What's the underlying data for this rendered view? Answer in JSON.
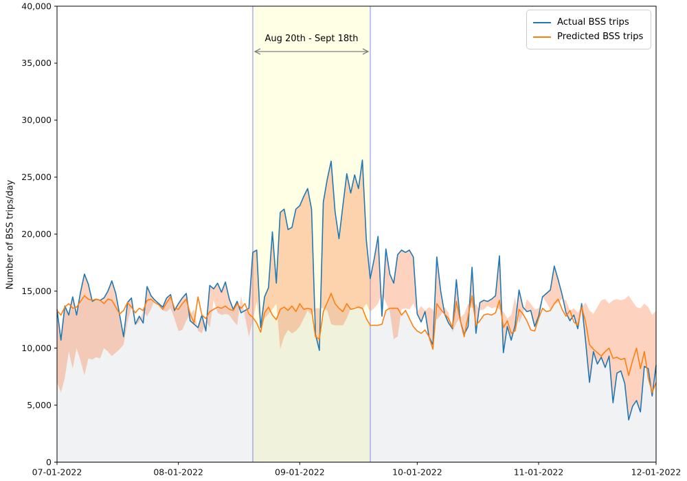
{
  "y_axis": {
    "label": "Number of BSS trips/day",
    "tick_labels": [
      "0",
      "5,000",
      "10,000",
      "15,000",
      "20,000",
      "25,000",
      "30,000",
      "35,000",
      "40,000"
    ],
    "tick_values": [
      0,
      5000,
      10000,
      15000,
      20000,
      25000,
      30000,
      35000,
      40000
    ]
  },
  "x_axis": {
    "tick_labels": [
      "07-01-2022",
      "08-01-2022",
      "09-01-2022",
      "10-01-2022",
      "11-01-2022",
      "12-01-2022"
    ],
    "tick_days": [
      0,
      31,
      62,
      92,
      123,
      153
    ]
  },
  "legend": {
    "items": [
      {
        "label": "Actual BSS trips",
        "color": "#1f77b4"
      },
      {
        "label": "Predicted BSS trips",
        "color": "#ff7f0e"
      }
    ]
  },
  "annotation": {
    "label": "Aug 20th - Sept 18th",
    "band_start_day": 50,
    "band_end_day": 80,
    "arrow_color": "#7f7f7f"
  },
  "chart_data": {
    "type": "line",
    "x_start": "07-01-2022",
    "x_end": "12-01-2022",
    "x_unit": "day",
    "n_points": 154,
    "ylim": [
      0,
      40000
    ],
    "grid": false,
    "legend_position": "upper right",
    "highlight_band": {
      "label": "Aug 20th - Sept 18th",
      "fill": "#ffffcf",
      "fill_opacity": 0.55,
      "edge_color": "#bdc4ee"
    },
    "style": {
      "between_fill": "#fa7a3c",
      "between_opacity": 0.33,
      "under_fill": "#787d8c",
      "under_opacity": 0.1,
      "line_width": 1.6,
      "spine_color": "#000000"
    },
    "series": [
      {
        "name": "Actual BSS trips",
        "color": "#1f77b4",
        "values": [
          13400,
          10700,
          13700,
          12900,
          14500,
          12900,
          14900,
          16500,
          15600,
          14100,
          14300,
          14200,
          14400,
          15000,
          15900,
          14800,
          12900,
          11000,
          14000,
          14400,
          12100,
          12800,
          12200,
          15400,
          14600,
          14200,
          13900,
          13600,
          14400,
          14700,
          13300,
          13900,
          14400,
          14800,
          12400,
          12100,
          11800,
          12900,
          11500,
          15500,
          15200,
          15700,
          14900,
          15800,
          14300,
          13400,
          14100,
          13100,
          13300,
          13500,
          18400,
          18600,
          11800,
          14500,
          15300,
          20200,
          15700,
          21900,
          22200,
          20400,
          20600,
          22200,
          22500,
          23300,
          24000,
          22200,
          11200,
          9800,
          22800,
          24800,
          26400,
          22000,
          19600,
          22500,
          25300,
          23600,
          25200,
          24000,
          26500,
          19500,
          16100,
          17800,
          19800,
          12800,
          18700,
          16500,
          15700,
          18200,
          18600,
          18400,
          18600,
          18000,
          13000,
          12300,
          13200,
          11000,
          10300,
          18000,
          15000,
          13000,
          12200,
          11700,
          16000,
          12400,
          11200,
          11900,
          17100,
          11300,
          14000,
          14200,
          14100,
          14300,
          14600,
          18100,
          9600,
          11900,
          10700,
          12000,
          15100,
          13600,
          13200,
          13300,
          11900,
          12800,
          14500,
          14800,
          15100,
          17200,
          16000,
          14700,
          13100,
          12400,
          12900,
          11700,
          13900,
          10600,
          7000,
          9700,
          8600,
          9200,
          8300,
          9300,
          5200,
          7800,
          8000,
          6900,
          3700,
          4900,
          5400,
          4400,
          8400,
          8200,
          5800,
          8500
        ]
      },
      {
        "name": "Predicted BSS trips",
        "color": "#ff7f0e",
        "values": [
          13300,
          12900,
          13600,
          13900,
          13500,
          13600,
          14100,
          14600,
          14300,
          14200,
          14300,
          14200,
          13900,
          14300,
          14200,
          13600,
          13000,
          13300,
          14000,
          13600,
          13100,
          13500,
          13300,
          14200,
          14300,
          14000,
          13800,
          13400,
          14000,
          14500,
          13500,
          13400,
          13900,
          14300,
          13000,
          12200,
          14500,
          12900,
          12600,
          13200,
          13400,
          13600,
          13500,
          13700,
          13400,
          13300,
          13900,
          13500,
          13900,
          13000,
          12700,
          12200,
          11400,
          13100,
          13600,
          12900,
          12500,
          13400,
          13600,
          13300,
          13700,
          13200,
          13900,
          13400,
          13500,
          13400,
          11000,
          10800,
          13200,
          14000,
          14800,
          13900,
          13500,
          13200,
          13900,
          13400,
          13500,
          13600,
          13500,
          12600,
          12000,
          12000,
          12000,
          12100,
          13300,
          13500,
          13500,
          13500,
          12900,
          13300,
          12600,
          11900,
          11500,
          11300,
          11600,
          11000,
          9900,
          13900,
          13400,
          13000,
          12600,
          11800,
          14100,
          12400,
          11000,
          12800,
          14600,
          12000,
          12400,
          12900,
          13000,
          12900,
          13100,
          14200,
          11800,
          12400,
          11300,
          11500,
          13400,
          13000,
          12400,
          11600,
          11500,
          12600,
          13500,
          13200,
          13300,
          13900,
          14300,
          13400,
          12800,
          13300,
          12300,
          12000,
          13600,
          12300,
          10300,
          9900,
          9600,
          9300,
          9700,
          10000,
          9100,
          9200,
          9000,
          9100,
          7600,
          8900,
          10000,
          8200,
          9700,
          7400,
          6100,
          7000
        ]
      }
    ]
  }
}
